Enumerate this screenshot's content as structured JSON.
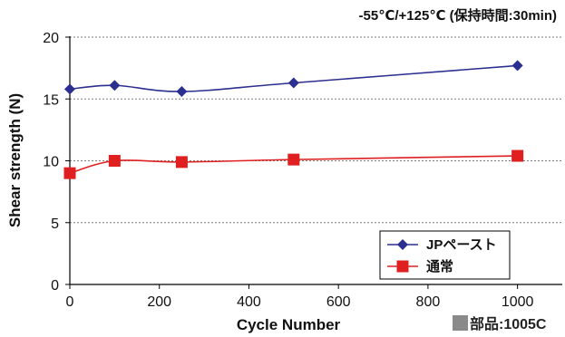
{
  "annotation_top": "-55℃/+125℃ (保持時間:30min)",
  "part_label": "部品:1005C",
  "chart_data": {
    "type": "line",
    "xlabel": "Cycle Number",
    "ylabel": "Shear strength (N)",
    "xlim": [
      0,
      1100
    ],
    "ylim": [
      0,
      20
    ],
    "xticks": [
      0,
      200,
      400,
      600,
      800,
      1000
    ],
    "yticks": [
      0,
      5,
      10,
      15,
      20
    ],
    "grid": "horizontal dotted",
    "legend_position": "bottom-right",
    "series": [
      {
        "name": "JPペースト",
        "color": "#2b2f8f",
        "marker": "diamond",
        "x": [
          0,
          100,
          250,
          500,
          1000
        ],
        "values": [
          15.8,
          16.1,
          15.6,
          16.3,
          17.7
        ]
      },
      {
        "name": "通常",
        "color": "#e02020",
        "marker": "square",
        "x": [
          0,
          100,
          250,
          500,
          1000
        ],
        "values": [
          9.0,
          10.0,
          9.9,
          10.1,
          10.4
        ]
      }
    ]
  }
}
